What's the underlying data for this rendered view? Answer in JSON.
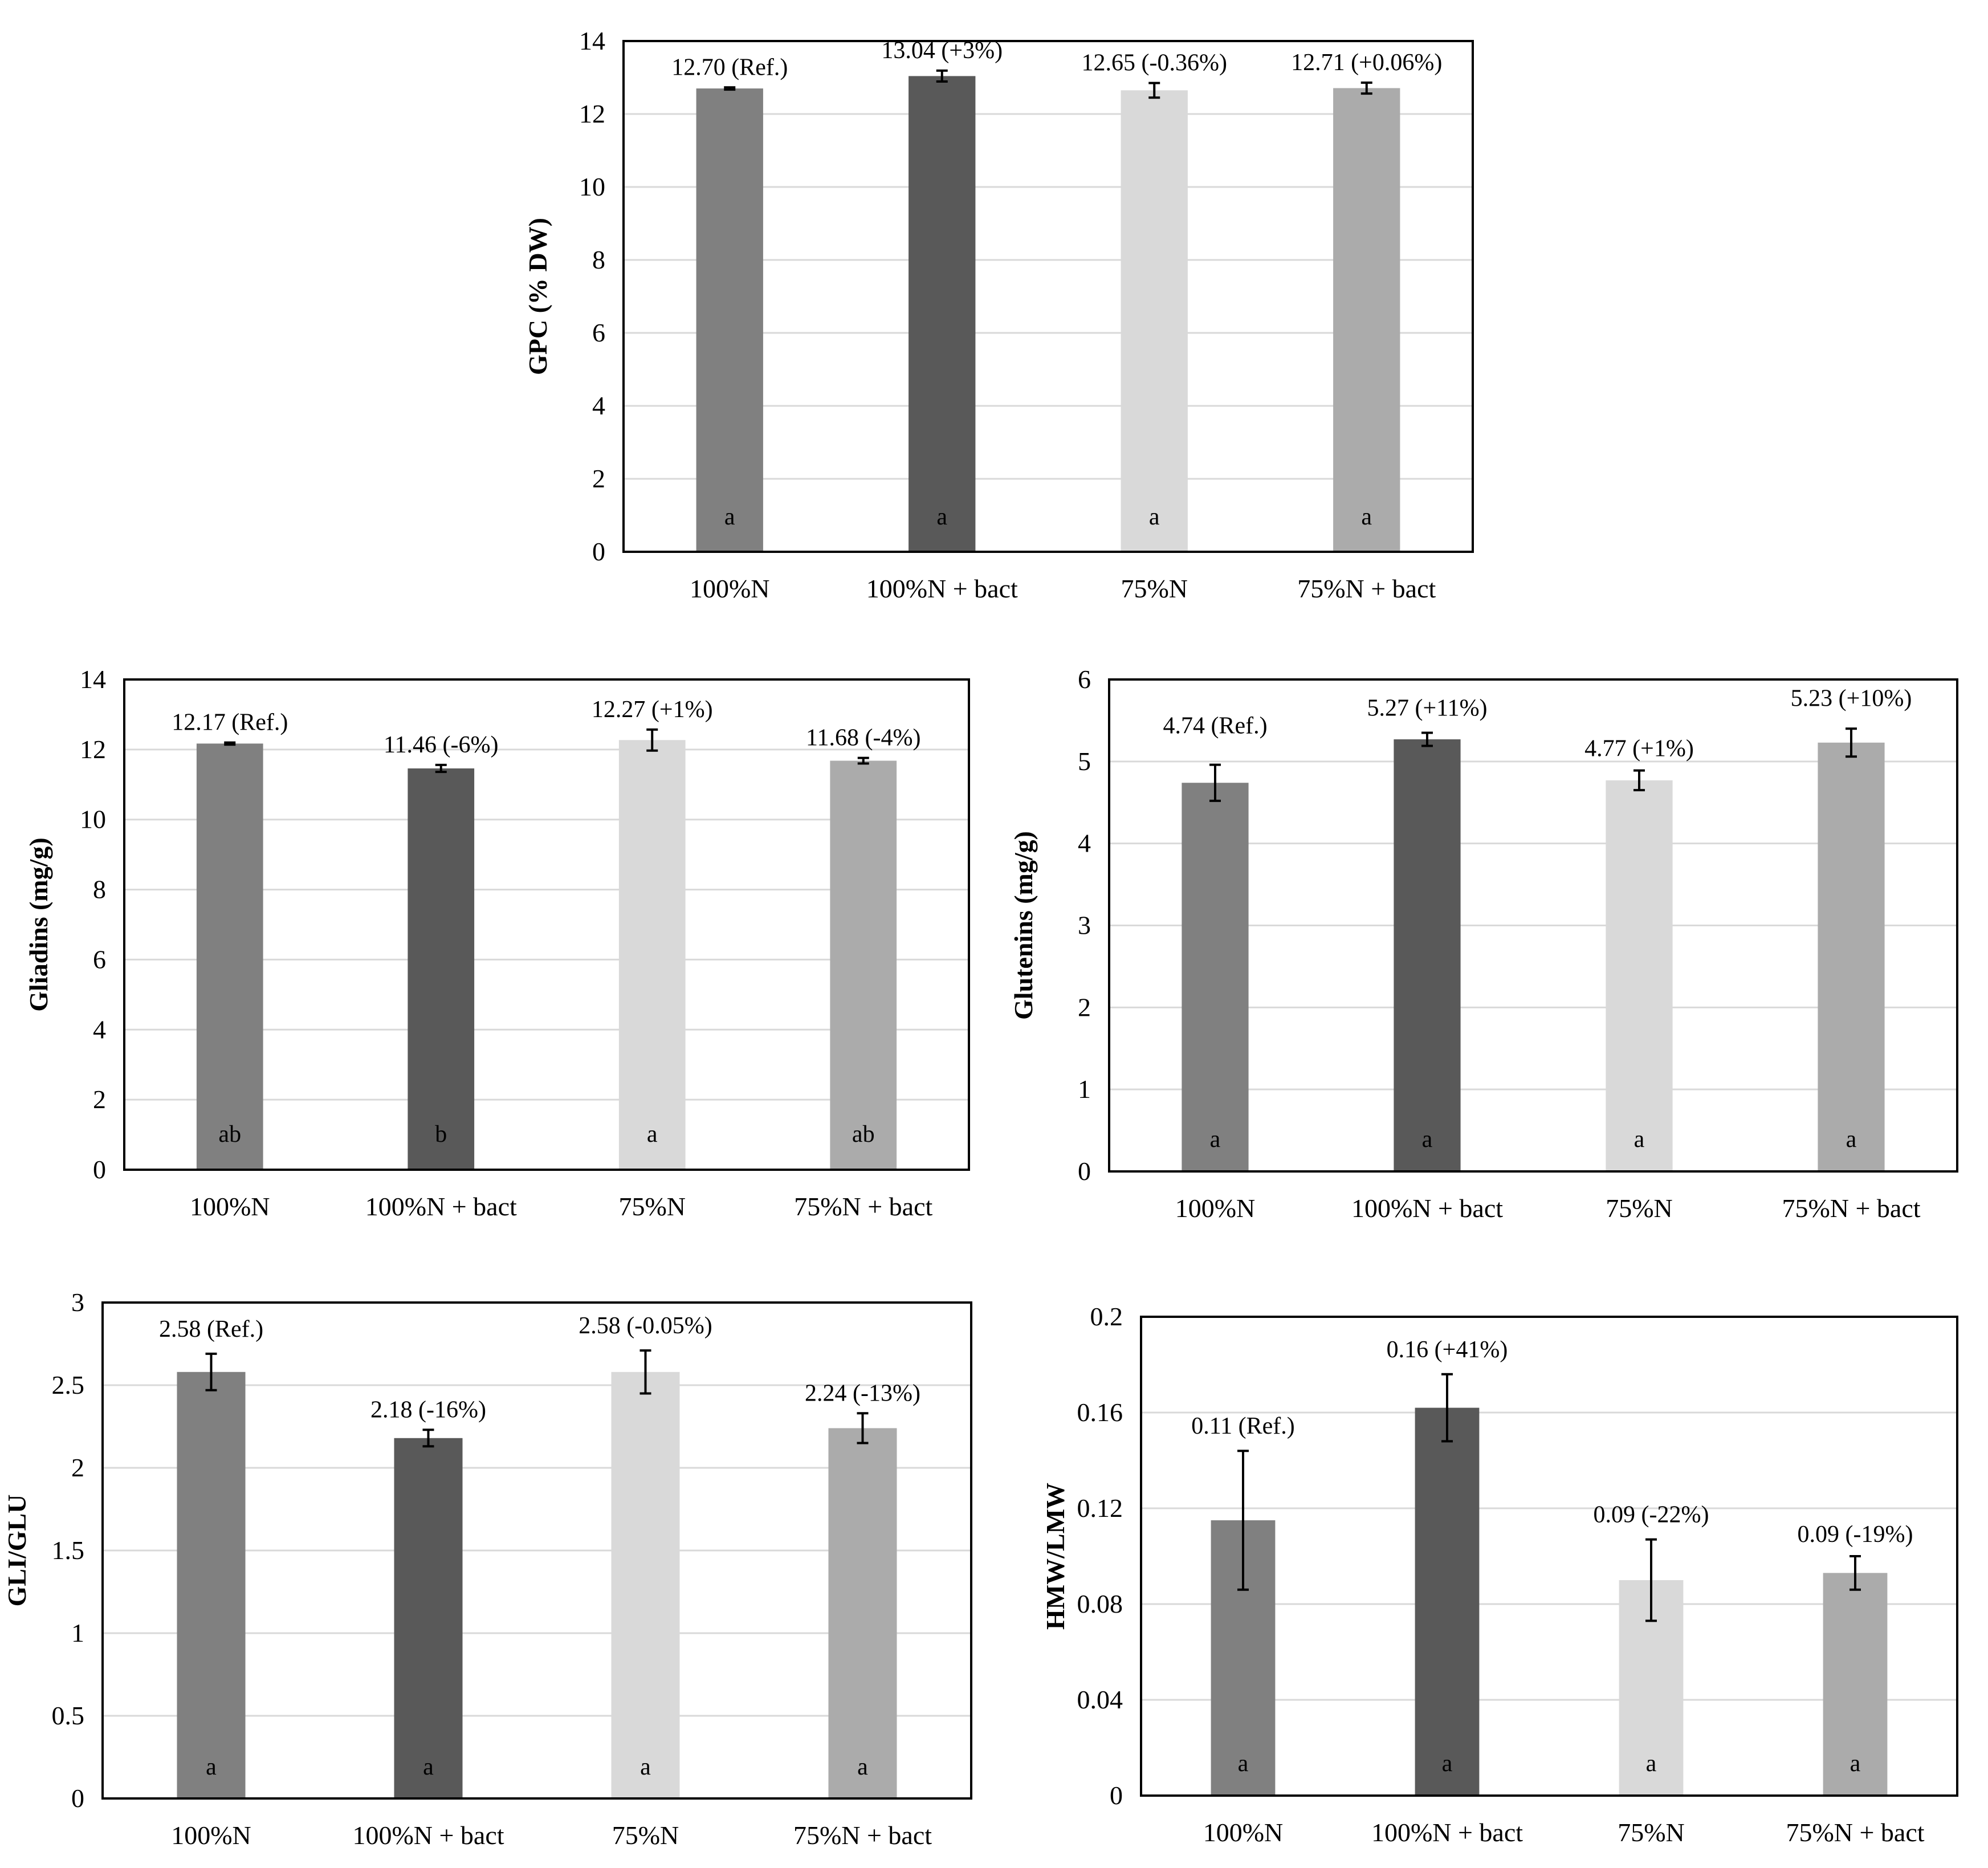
{
  "chart_data": [
    {
      "id": "gpc",
      "type": "bar",
      "ylabel": "GPC (% DW)",
      "categories": [
        "100%N",
        "100%N + bact",
        "75%N",
        "75%N + bact"
      ],
      "values": [
        12.7,
        13.04,
        12.65,
        12.71
      ],
      "errors": [
        0.03,
        0.15,
        0.2,
        0.15
      ],
      "value_labels": [
        "12.70 (Ref.)",
        "13.04 (+3%)",
        "12.65 (-0.36%)",
        "12.71 (+0.06%)"
      ],
      "letters": [
        "a",
        "a",
        "a",
        "a"
      ],
      "ylim": [
        0,
        14
      ],
      "yticks": [
        "0",
        "2",
        "4",
        "6",
        "8",
        "10",
        "12",
        "14"
      ],
      "bar_colors": [
        "#808080",
        "#595959",
        "#d9d9d9",
        "#ababab"
      ],
      "grid": true
    },
    {
      "id": "gliadins",
      "type": "bar",
      "ylabel": "Gliadins  (mg/g)",
      "categories": [
        "100%N",
        "100%N + bact",
        "75%N",
        "75%N + bact"
      ],
      "values": [
        12.17,
        11.46,
        12.27,
        11.68
      ],
      "errors": [
        0.03,
        0.1,
        0.3,
        0.08
      ],
      "value_labels": [
        "12.17 (Ref.)",
        "11.46 (-6%)",
        "12.27 (+1%)",
        "11.68 (-4%)"
      ],
      "letters": [
        "ab",
        "b",
        "a",
        "ab"
      ],
      "ylim": [
        0,
        14
      ],
      "yticks": [
        "0",
        "2",
        "4",
        "6",
        "8",
        "10",
        "12",
        "14"
      ],
      "bar_colors": [
        "#808080",
        "#595959",
        "#d9d9d9",
        "#ababab"
      ],
      "grid": true
    },
    {
      "id": "glutenins",
      "type": "bar",
      "ylabel": "Glutenins  (mg/g)",
      "categories": [
        "100%N",
        "100%N + bact",
        "75%N",
        "75%N + bact"
      ],
      "values": [
        4.74,
        5.27,
        4.77,
        5.23
      ],
      "errors": [
        0.22,
        0.08,
        0.12,
        0.17
      ],
      "value_labels": [
        "4.74 (Ref.)",
        "5.27 (+11%)",
        "4.77 (+1%)",
        "5.23 (+10%)"
      ],
      "letters": [
        "a",
        "a",
        "a",
        "a"
      ],
      "ylim": [
        0,
        6
      ],
      "yticks": [
        "0",
        "1",
        "2",
        "3",
        "4",
        "5",
        "6"
      ],
      "bar_colors": [
        "#808080",
        "#595959",
        "#d9d9d9",
        "#ababab"
      ],
      "grid": true
    },
    {
      "id": "gli_glu",
      "type": "bar",
      "ylabel": "GLI/GLU",
      "categories": [
        "100%N",
        "100%N + bact",
        "75%N",
        "75%N + bact"
      ],
      "values": [
        2.58,
        2.18,
        2.58,
        2.24
      ],
      "errors": [
        0.11,
        0.05,
        0.13,
        0.09
      ],
      "value_labels": [
        "2.58 (Ref.)",
        "2.18 (-16%)",
        "2.58 (-0.05%)",
        "2.24 (-13%)"
      ],
      "letters": [
        "a",
        "a",
        "a",
        "a"
      ],
      "ylim": [
        0,
        3
      ],
      "yticks": [
        "0",
        "0.5",
        "1",
        "1.5",
        "2",
        "2.5",
        "3"
      ],
      "bar_colors": [
        "#808080",
        "#595959",
        "#d9d9d9",
        "#ababab"
      ],
      "grid": true
    },
    {
      "id": "hmw_lmw",
      "type": "bar",
      "ylabel": "HMW/LMW",
      "categories": [
        "100%N",
        "100%N + bact",
        "75%N",
        "75%N + bact"
      ],
      "values": [
        0.115,
        0.162,
        0.09,
        0.093
      ],
      "errors": [
        0.029,
        0.014,
        0.017,
        0.007
      ],
      "value_labels": [
        "0.11 (Ref.)",
        "0.16 (+41%)",
        "0.09 (-22%)",
        "0.09 (-19%)"
      ],
      "letters": [
        "a",
        "a",
        "a",
        "a"
      ],
      "ylim": [
        0,
        0.2
      ],
      "yticks": [
        "0",
        "0.04",
        "0.08",
        "0.12",
        "0.16",
        "0.2"
      ],
      "bar_colors": [
        "#808080",
        "#595959",
        "#d9d9d9",
        "#ababab"
      ],
      "grid": true
    }
  ]
}
